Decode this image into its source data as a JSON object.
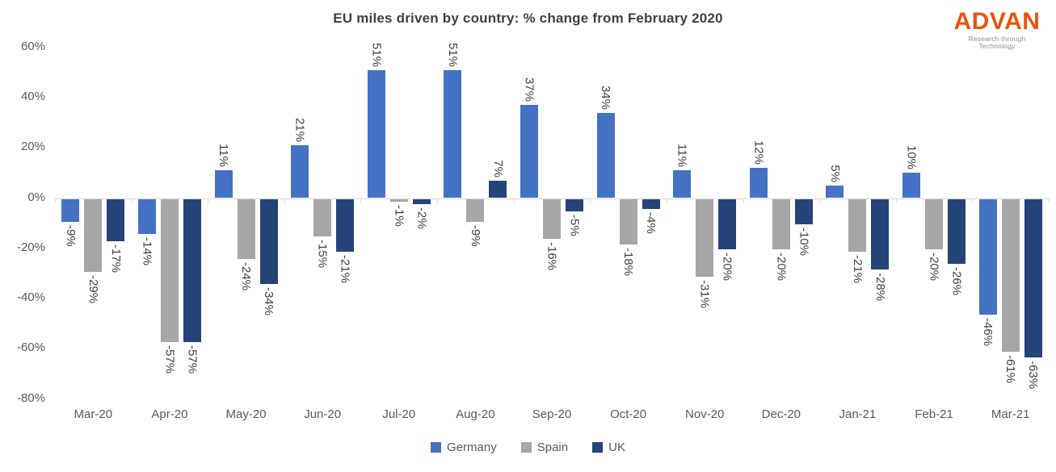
{
  "header": {
    "title": "EU miles driven by country: % change from February 2020",
    "logo": {
      "name": "ADVAN",
      "tagline": "Research through Technology",
      "name_color": "#EB530E",
      "tagline_color": "#8F8F8F"
    }
  },
  "colors": {
    "axis_line": "#D9D9D9",
    "tick_text": "#595959",
    "data_label_text": "#404040",
    "title_text": "#404040"
  },
  "chart_data": {
    "type": "bar",
    "title": "EU miles driven by country: % change from February 2020",
    "categories": [
      "Mar-20",
      "Apr-20",
      "May-20",
      "Jun-20",
      "Jul-20",
      "Aug-20",
      "Sep-20",
      "Oct-20",
      "Nov-20",
      "Dec-20",
      "Jan-21",
      "Feb-21",
      "Mar-21"
    ],
    "series": [
      {
        "name": "Germany",
        "color": "#4472C4",
        "values": [
          -9,
          -14,
          11,
          21,
          51,
          51,
          37,
          34,
          11,
          12,
          5,
          10,
          -46
        ]
      },
      {
        "name": "Spain",
        "color": "#A6A6A6",
        "values": [
          -29,
          -57,
          -24,
          -15,
          -1,
          -9,
          -16,
          -18,
          -31,
          -20,
          -21,
          -20,
          -61
        ]
      },
      {
        "name": "UK",
        "color": "#254478",
        "values": [
          -17,
          -57,
          -34,
          -21,
          -2,
          7,
          -5,
          -4,
          -20,
          -10,
          -28,
          -26,
          -63
        ]
      }
    ],
    "value_suffix": "%",
    "ylim": [
      -80,
      60
    ],
    "ytick_labels": [
      "60%",
      "40%",
      "20%",
      "0%",
      "-20%",
      "-40%",
      "-60%",
      "-80%"
    ],
    "grid": false,
    "legend_position": "bottom",
    "data_labels": "outside-end rotated 90deg"
  }
}
